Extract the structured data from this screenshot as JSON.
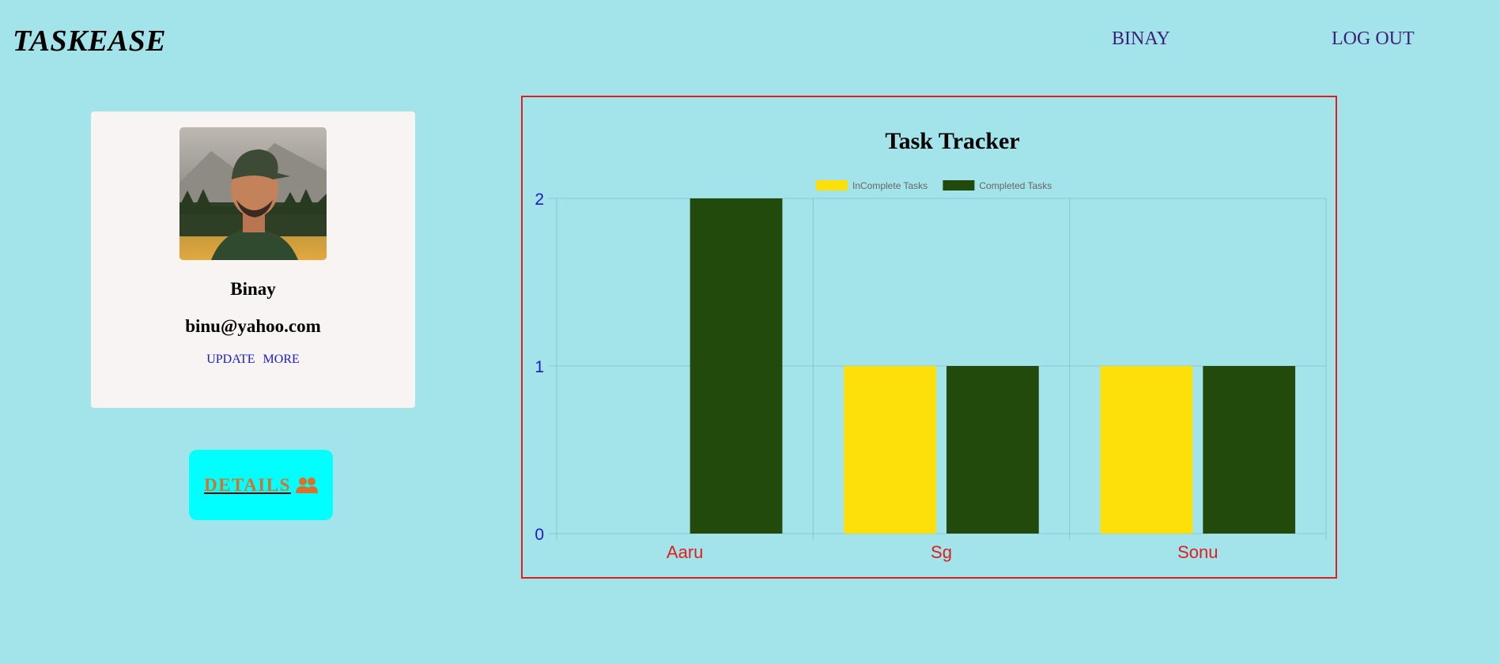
{
  "header": {
    "brand": "TASKEASE",
    "user_link": "BINAY",
    "logout_link": "LOG OUT"
  },
  "profile": {
    "name": "Binay",
    "email": "binu@yahoo.com",
    "update_link": "UPDATE",
    "more_link": "MORE"
  },
  "details_button": {
    "label": "DETAILS",
    "icon": "users-icon"
  },
  "colors": {
    "background": "#a3e3ea",
    "incomplete": "#fde00a",
    "completed": "#214a0c",
    "y_tick": "#1a1acc",
    "x_tick": "#e01e1e",
    "frame": "#e01e1e"
  },
  "chart_data": {
    "type": "bar",
    "title": "Task Tracker",
    "categories": [
      "Aaru",
      "Sg",
      "Sonu"
    ],
    "series": [
      {
        "name": "InComplete Tasks",
        "values": [
          0,
          1,
          1
        ],
        "color": "#fde00a"
      },
      {
        "name": "Completed Tasks",
        "values": [
          2,
          1,
          1
        ],
        "color": "#214a0c"
      }
    ],
    "ylim": [
      0,
      2
    ],
    "yticks": [
      0,
      1,
      2
    ],
    "grid": true,
    "legend": "top"
  }
}
